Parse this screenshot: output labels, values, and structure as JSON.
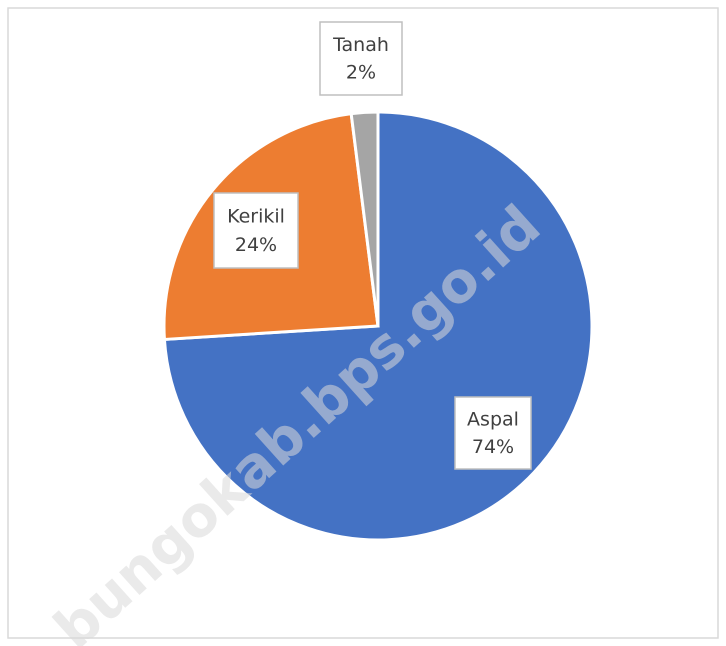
{
  "chart_data": {
    "type": "pie",
    "categories": [
      "Aspal",
      "Kerikil",
      "Tanah"
    ],
    "values": [
      74,
      24,
      2
    ],
    "value_labels": [
      "74%",
      "24%",
      "2%"
    ],
    "colors": [
      "#4472c4",
      "#ed7d31",
      "#a5a5a5"
    ],
    "watermark": "bungokab.bps.go.id"
  }
}
